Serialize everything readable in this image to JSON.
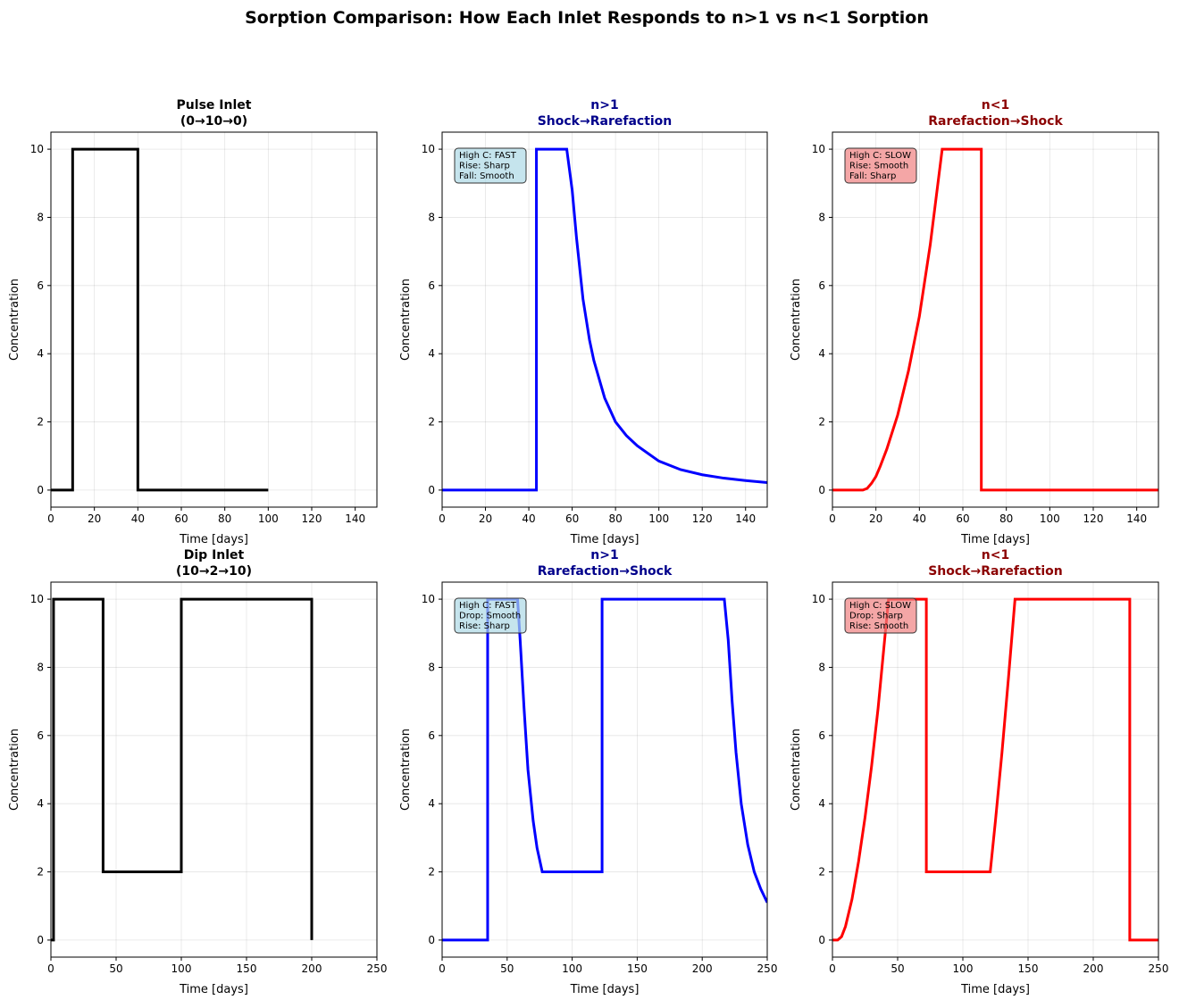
{
  "suptitle": "Sorption Comparison: How Each Inlet Responds to n>1 vs n<1 Sorption",
  "colors": {
    "inlet": "#000000",
    "n_gt_1": "#0000ff",
    "n_lt_1": "#ff0000",
    "title_gt": "#00008b",
    "title_lt": "#8b0000",
    "box_gt": "#add8e6",
    "box_lt": "#f08080"
  },
  "chart_data": [
    {
      "type": "line",
      "title": [
        "Pulse Inlet",
        "(0→10→0)"
      ],
      "title_color": "#000000",
      "line_color": "#000000",
      "xlabel": "Time [days]",
      "ylabel": "Concentration",
      "xlim": [
        0,
        150
      ],
      "ylim": [
        -0.5,
        10.5
      ],
      "xticks": [
        0,
        20,
        40,
        60,
        80,
        100,
        120,
        140
      ],
      "yticks": [
        0,
        2,
        4,
        6,
        8,
        10
      ],
      "grid": true,
      "points": [
        [
          0,
          0
        ],
        [
          10,
          0
        ],
        [
          10,
          10
        ],
        [
          40,
          10
        ],
        [
          40,
          0
        ],
        [
          100,
          0
        ]
      ]
    },
    {
      "type": "line",
      "title": [
        "n>1",
        "Shock→Rarefaction"
      ],
      "title_color": "#00008b",
      "line_color": "#0000ff",
      "xlabel": "Time [days]",
      "ylabel": "Concentration",
      "xlim": [
        0,
        150
      ],
      "ylim": [
        -0.5,
        10.5
      ],
      "xticks": [
        0,
        20,
        40,
        60,
        80,
        100,
        120,
        140
      ],
      "yticks": [
        0,
        2,
        4,
        6,
        8,
        10
      ],
      "grid": true,
      "annotation": [
        "High C: FAST",
        "Rise: Sharp",
        "Fall: Smooth"
      ],
      "annotation_color": "#add8e6",
      "points": [
        [
          0,
          0
        ],
        [
          43.5,
          0
        ],
        [
          43.5,
          10
        ],
        [
          57.5,
          10
        ],
        [
          60,
          8.8
        ],
        [
          62,
          7.4
        ],
        [
          65,
          5.6
        ],
        [
          68,
          4.4
        ],
        [
          70,
          3.8
        ],
        [
          75,
          2.7
        ],
        [
          80,
          2.0
        ],
        [
          85,
          1.6
        ],
        [
          90,
          1.3
        ],
        [
          100,
          0.85
        ],
        [
          110,
          0.6
        ],
        [
          120,
          0.45
        ],
        [
          130,
          0.35
        ],
        [
          140,
          0.28
        ],
        [
          150,
          0.22
        ]
      ]
    },
    {
      "type": "line",
      "title": [
        "n<1",
        "Rarefaction→Shock"
      ],
      "title_color": "#8b0000",
      "line_color": "#ff0000",
      "xlabel": "Time [days]",
      "ylabel": "Concentration",
      "xlim": [
        0,
        150
      ],
      "ylim": [
        -0.5,
        10.5
      ],
      "xticks": [
        0,
        20,
        40,
        60,
        80,
        100,
        120,
        140
      ],
      "yticks": [
        0,
        2,
        4,
        6,
        8,
        10
      ],
      "grid": true,
      "annotation": [
        "High C: SLOW",
        "Rise: Smooth",
        "Fall: Sharp"
      ],
      "annotation_color": "#f08080",
      "points": [
        [
          0,
          0
        ],
        [
          14,
          0
        ],
        [
          16,
          0.05
        ],
        [
          18,
          0.2
        ],
        [
          20,
          0.4
        ],
        [
          22,
          0.7
        ],
        [
          25,
          1.2
        ],
        [
          30,
          2.2
        ],
        [
          35,
          3.5
        ],
        [
          40,
          5.1
        ],
        [
          45,
          7.2
        ],
        [
          50.5,
          10
        ],
        [
          68.5,
          10
        ],
        [
          68.5,
          0
        ],
        [
          150,
          0
        ]
      ]
    },
    {
      "type": "line",
      "title": [
        "Dip Inlet",
        "(10→2→10)"
      ],
      "title_color": "#000000",
      "line_color": "#000000",
      "xlabel": "Time [days]",
      "ylabel": "Concentration",
      "xlim": [
        0,
        250
      ],
      "ylim": [
        -0.5,
        10.5
      ],
      "xticks": [
        0,
        50,
        100,
        150,
        200,
        250
      ],
      "yticks": [
        0,
        2,
        4,
        6,
        8,
        10
      ],
      "grid": true,
      "points": [
        [
          0,
          0
        ],
        [
          2,
          0
        ],
        [
          2,
          10
        ],
        [
          40,
          10
        ],
        [
          40,
          2
        ],
        [
          100,
          2
        ],
        [
          100,
          10
        ],
        [
          200,
          10
        ],
        [
          200,
          0
        ]
      ]
    },
    {
      "type": "line",
      "title": [
        "n>1",
        "Rarefaction→Shock"
      ],
      "title_color": "#00008b",
      "line_color": "#0000ff",
      "xlabel": "Time [days]",
      "ylabel": "Concentration",
      "xlim": [
        0,
        250
      ],
      "ylim": [
        -0.5,
        10.5
      ],
      "xticks": [
        0,
        50,
        100,
        150,
        200,
        250
      ],
      "yticks": [
        0,
        2,
        4,
        6,
        8,
        10
      ],
      "grid": true,
      "annotation": [
        "High C: FAST",
        "Drop: Smooth",
        "Rise: Sharp"
      ],
      "annotation_color": "#add8e6",
      "points": [
        [
          0,
          0
        ],
        [
          35,
          0
        ],
        [
          35,
          10
        ],
        [
          58,
          10
        ],
        [
          60,
          8.8
        ],
        [
          63,
          6.8
        ],
        [
          66,
          5.0
        ],
        [
          70,
          3.5
        ],
        [
          73,
          2.7
        ],
        [
          77,
          2
        ],
        [
          123,
          2
        ],
        [
          123,
          10
        ],
        [
          217,
          10
        ],
        [
          220,
          8.8
        ],
        [
          223,
          7
        ],
        [
          226,
          5.5
        ],
        [
          230,
          4
        ],
        [
          235,
          2.8
        ],
        [
          240,
          2.0
        ],
        [
          245,
          1.5
        ],
        [
          250,
          1.1
        ]
      ]
    },
    {
      "type": "line",
      "title": [
        "n<1",
        "Shock→Rarefaction"
      ],
      "title_color": "#8b0000",
      "line_color": "#ff0000",
      "xlabel": "Time [days]",
      "ylabel": "Concentration",
      "xlim": [
        0,
        250
      ],
      "ylim": [
        -0.5,
        10.5
      ],
      "xticks": [
        0,
        50,
        100,
        150,
        200,
        250
      ],
      "yticks": [
        0,
        2,
        4,
        6,
        8,
        10
      ],
      "grid": true,
      "annotation": [
        "High C: SLOW",
        "Drop: Sharp",
        "Rise: Smooth"
      ],
      "annotation_color": "#f08080",
      "points": [
        [
          0,
          0
        ],
        [
          4,
          0
        ],
        [
          7,
          0.1
        ],
        [
          10,
          0.4
        ],
        [
          15,
          1.2
        ],
        [
          20,
          2.3
        ],
        [
          25,
          3.6
        ],
        [
          30,
          5.1
        ],
        [
          35,
          6.8
        ],
        [
          40,
          8.8
        ],
        [
          43,
          10
        ],
        [
          72,
          10
        ],
        [
          72,
          2
        ],
        [
          121,
          2
        ],
        [
          125,
          3.5
        ],
        [
          130,
          5.5
        ],
        [
          135,
          7.7
        ],
        [
          140,
          10
        ],
        [
          228,
          10
        ],
        [
          228,
          0
        ],
        [
          250,
          0
        ]
      ]
    }
  ]
}
